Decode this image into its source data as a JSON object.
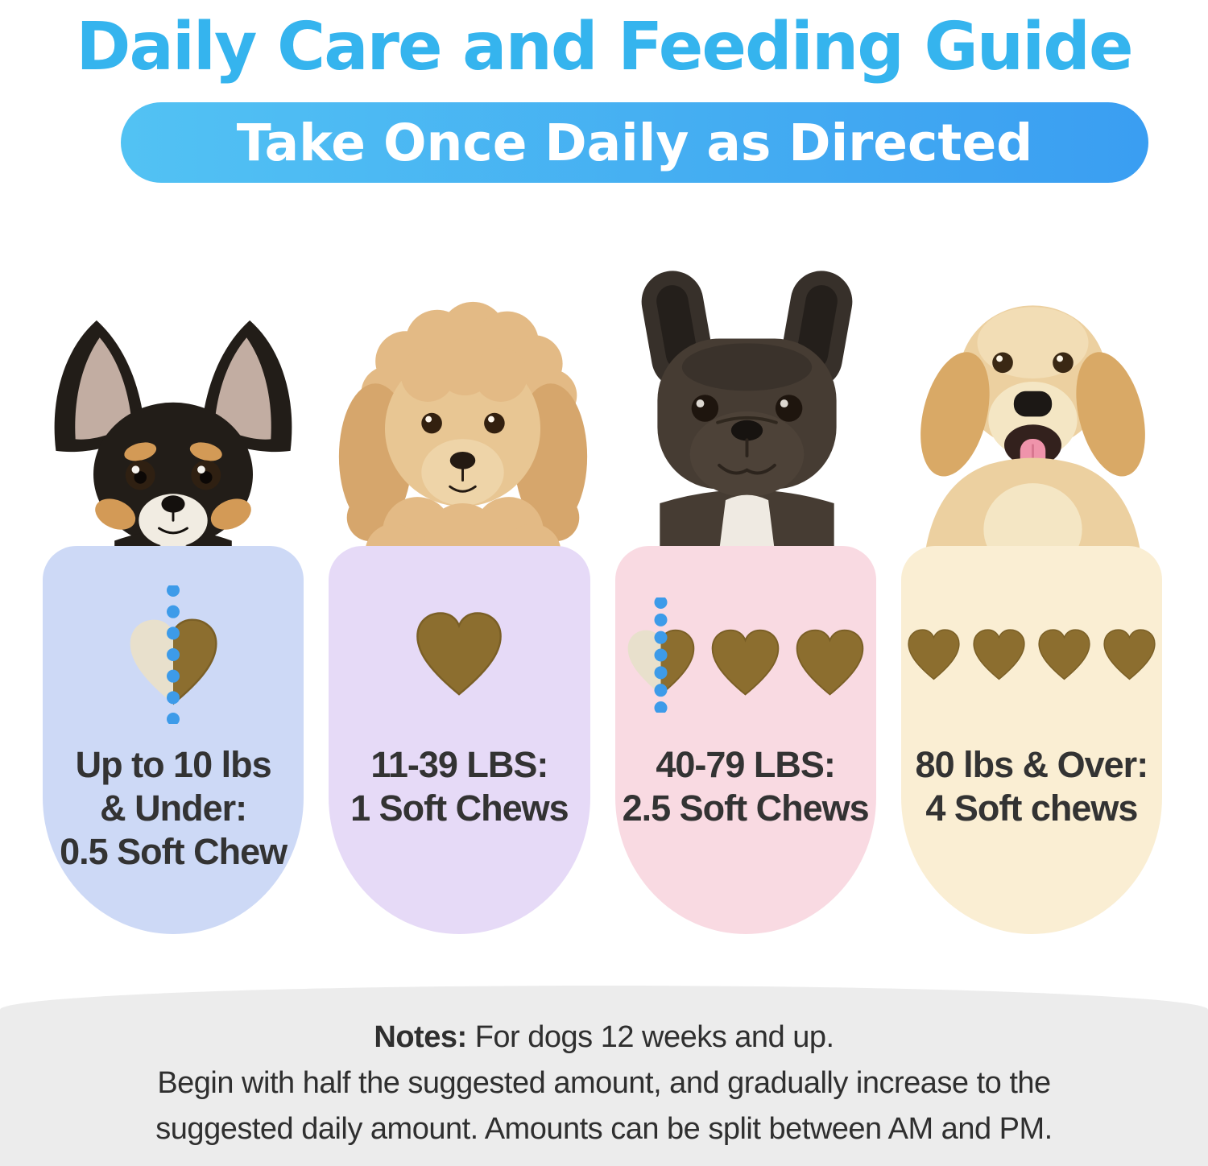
{
  "header": {
    "title": "Daily Care and Feeding Guide",
    "banner": "Take Once Daily as Directed"
  },
  "colors": {
    "title_blue": "#35b4ee",
    "banner_gradient_start": "#52c2f3",
    "banner_gradient_end": "#3a9ef2",
    "chew_brown": "#8c6e2f",
    "chew_brown_edge": "#7a5f26",
    "chew_half_beige": "#e8e0cc",
    "dot_blue": "#3d9be9",
    "card_text": "#333333",
    "notes_bg": "#ececec"
  },
  "cards": [
    {
      "name": "up-to-10-lbs",
      "dog": "chihuahua",
      "bg": "#cdd9f6",
      "label_lines": [
        "Up to 10 lbs",
        "& Under:",
        "0.5 Soft Chew"
      ],
      "chews": {
        "half": true,
        "full": 0,
        "dotted_line": true,
        "size": 124,
        "gap": 0
      }
    },
    {
      "name": "11-39-lbs",
      "dog": "toy-poodle",
      "bg": "#e6daf7",
      "label_lines": [
        "11-39 LBS:",
        "1 Soft Chews"
      ],
      "chews": {
        "half": false,
        "full": 1,
        "dotted_line": false,
        "size": 120,
        "gap": 0
      }
    },
    {
      "name": "40-79-lbs",
      "dog": "french-bulldog",
      "bg": "#f9dae2",
      "label_lines": [
        "40-79 LBS:",
        "2.5 Soft Chews"
      ],
      "chews": {
        "half": true,
        "full": 2,
        "dotted_line": true,
        "size": 95,
        "gap": 10
      }
    },
    {
      "name": "80-lbs-over",
      "dog": "golden-retriever",
      "bg": "#faeed3",
      "label_lines": [
        "80 lbs & Over:",
        "4 Soft chews"
      ],
      "chews": {
        "half": false,
        "full": 4,
        "dotted_line": false,
        "size": 73,
        "gap": 8
      }
    }
  ],
  "notes": {
    "label": "Notes:",
    "line1": "For dogs 12 weeks and up.",
    "line2": "Begin with half the suggested amount, and gradually increase to the",
    "line3": "suggested daily amount. Amounts can be split between AM and PM."
  }
}
